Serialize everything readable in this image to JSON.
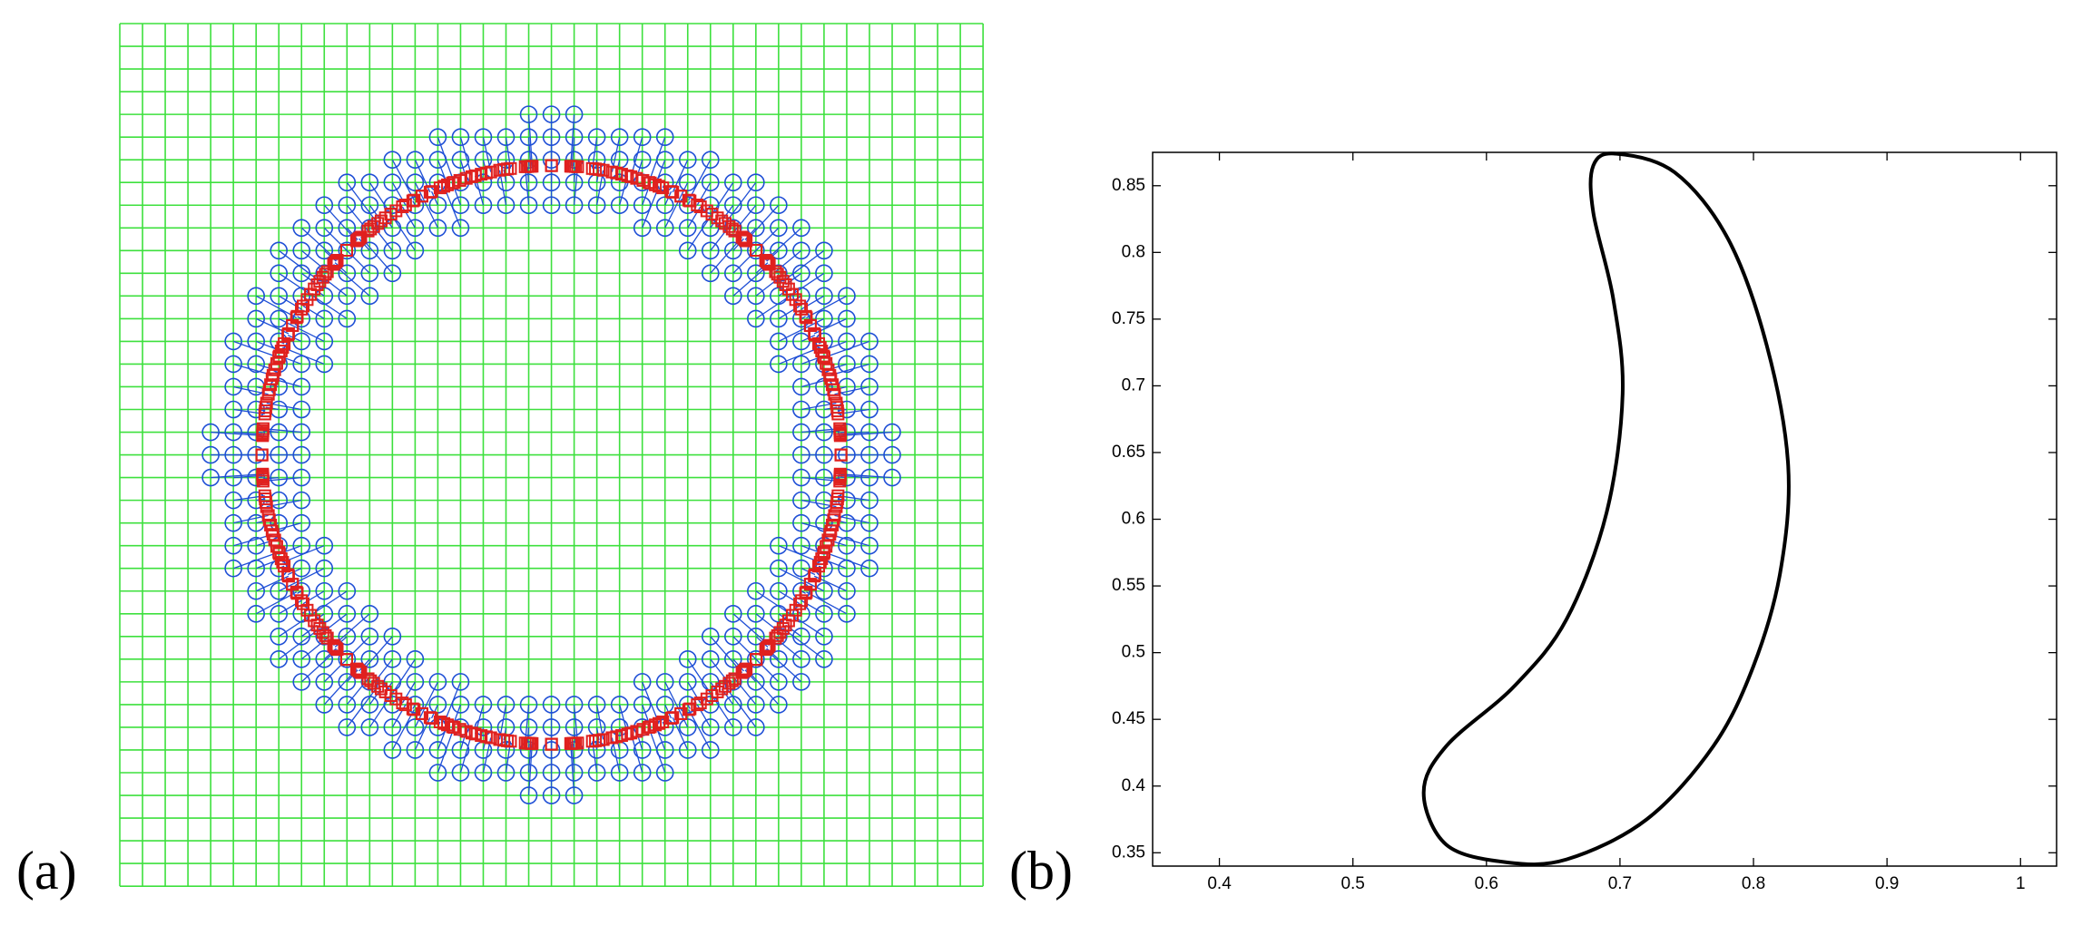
{
  "panel_labels": [
    "(a)",
    "(b)"
  ],
  "chart_data": {
    "type": "line",
    "x": [
      0.697,
      0.741,
      0.781,
      0.81,
      0.826,
      0.82,
      0.8,
      0.77,
      0.72,
      0.66,
      0.614,
      0.57,
      0.553,
      0.57,
      0.621,
      0.66,
      0.69,
      0.702,
      0.695,
      0.68,
      0.68
    ],
    "series": [
      {
        "color": "#000000",
        "values": [
          0.874,
          0.86,
          0.81,
          0.73,
          0.64,
          0.56,
          0.49,
          0.43,
          0.375,
          0.345,
          0.343,
          0.356,
          0.395,
          0.43,
          0.475,
          0.525,
          0.605,
          0.694,
          0.765,
          0.83,
          0.865
        ]
      }
    ],
    "xlim": [
      0.35,
      1.027
    ],
    "ylim": [
      0.34,
      0.875
    ],
    "xticks": [
      0.4,
      0.5,
      0.6,
      0.7,
      0.8,
      0.9,
      1
    ],
    "yticks": [
      0.35,
      0.4,
      0.45,
      0.5,
      0.55,
      0.6,
      0.65,
      0.7,
      0.75,
      0.8,
      0.85
    ]
  }
}
